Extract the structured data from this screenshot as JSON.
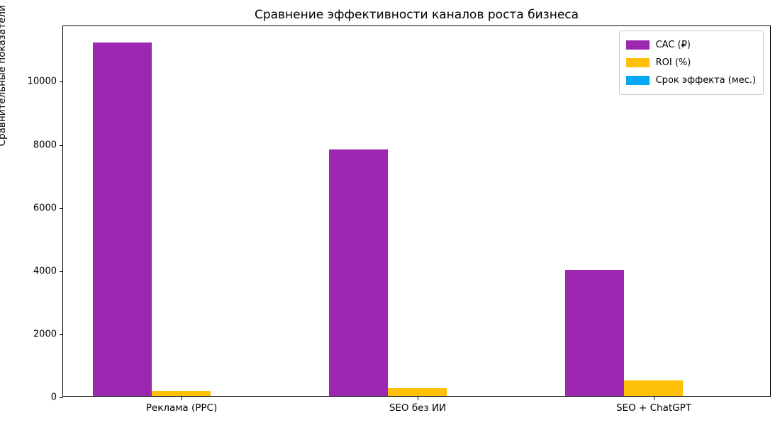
{
  "chart_data": {
    "type": "bar",
    "title": "Сравнение эффективности каналов роста бизнеса",
    "ylabel": "Сравнительные показатели",
    "xlabel": "",
    "categories": [
      "Реклама (PPC)",
      "SEO без ИИ",
      "SEO + ChatGPT"
    ],
    "series": [
      {
        "name": "CAC (₽)",
        "slug": "cac",
        "color": "#9C27B0",
        "values": [
          11200,
          7800,
          4000
        ]
      },
      {
        "name": "ROI (%)",
        "slug": "roi",
        "color": "#FFC107",
        "values": [
          150,
          250,
          500
        ]
      },
      {
        "name": "Срок эффекта (мес.)",
        "slug": "effect-duration",
        "color": "#03A9F4",
        "values": [
          0,
          0,
          0
        ]
      }
    ],
    "yticks": [
      0,
      2000,
      4000,
      6000,
      8000,
      10000
    ],
    "ylim": [
      0,
      11760
    ],
    "grid": false,
    "legend_position": "upper right",
    "background_color": "#ffffff"
  }
}
